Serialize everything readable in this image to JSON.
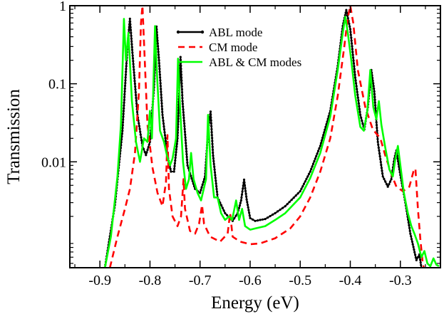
{
  "chart_data": {
    "type": "line",
    "title": "",
    "xlabel": "Energy (eV)",
    "ylabel": "Transmission",
    "xlim": [
      -0.96,
      -0.22
    ],
    "ylim": [
      0.00044,
      1.0
    ],
    "yscale": "log",
    "grid": false,
    "legend_position": "top-center",
    "x_ticks": [
      -0.9,
      -0.8,
      -0.7,
      -0.6,
      -0.5,
      -0.4,
      -0.3
    ],
    "x_tick_labels": [
      "-0.9",
      "-0.8",
      "-0.7",
      "-0.6",
      "-0.5",
      "-0.4",
      "-0.3"
    ],
    "y_ticks": [
      0.01,
      0.1,
      1
    ],
    "y_tick_labels": [
      "0.01",
      "0.1",
      "1"
    ],
    "series": [
      {
        "name": "ABL mode",
        "color": "#000000",
        "style": "solid-with-dots",
        "points": [
          [
            -0.89,
            0.00044
          ],
          [
            -0.87,
            0.0028
          ],
          [
            -0.855,
            0.025
          ],
          [
            -0.845,
            0.3
          ],
          [
            -0.84,
            0.68
          ],
          [
            -0.835,
            0.25
          ],
          [
            -0.825,
            0.04
          ],
          [
            -0.815,
            0.016
          ],
          [
            -0.808,
            0.0122
          ],
          [
            -0.8,
            0.018
          ],
          [
            -0.792,
            0.09
          ],
          [
            -0.787,
            0.54
          ],
          [
            -0.782,
            0.2
          ],
          [
            -0.775,
            0.04
          ],
          [
            -0.765,
            0.012
          ],
          [
            -0.758,
            0.0075
          ],
          [
            -0.752,
            0.0075
          ],
          [
            -0.745,
            0.02
          ],
          [
            -0.739,
            0.22
          ],
          [
            -0.735,
            0.06
          ],
          [
            -0.725,
            0.009
          ],
          [
            -0.71,
            0.0045
          ],
          [
            -0.7,
            0.004
          ],
          [
            -0.69,
            0.0065
          ],
          [
            -0.684,
            0.025
          ],
          [
            -0.679,
            0.044
          ],
          [
            -0.674,
            0.012
          ],
          [
            -0.665,
            0.0035
          ],
          [
            -0.65,
            0.0022
          ],
          [
            -0.635,
            0.00175
          ],
          [
            -0.625,
            0.0022
          ],
          [
            -0.618,
            0.0032
          ],
          [
            -0.612,
            0.0059
          ],
          [
            -0.607,
            0.0033
          ],
          [
            -0.6,
            0.0019
          ],
          [
            -0.59,
            0.00175
          ],
          [
            -0.57,
            0.00185
          ],
          [
            -0.55,
            0.0022
          ],
          [
            -0.53,
            0.0027
          ],
          [
            -0.5,
            0.0042
          ],
          [
            -0.48,
            0.0075
          ],
          [
            -0.46,
            0.016
          ],
          [
            -0.44,
            0.045
          ],
          [
            -0.425,
            0.17
          ],
          [
            -0.415,
            0.55
          ],
          [
            -0.408,
            0.88
          ],
          [
            -0.4,
            0.5
          ],
          [
            -0.39,
            0.12
          ],
          [
            -0.38,
            0.04
          ],
          [
            -0.372,
            0.026
          ],
          [
            -0.365,
            0.05
          ],
          [
            -0.358,
            0.15
          ],
          [
            -0.352,
            0.08
          ],
          [
            -0.345,
            0.018
          ],
          [
            -0.335,
            0.0065
          ],
          [
            -0.325,
            0.0048
          ],
          [
            -0.318,
            0.006
          ],
          [
            -0.312,
            0.011
          ],
          [
            -0.308,
            0.014
          ],
          [
            -0.302,
            0.008
          ],
          [
            -0.29,
            0.003
          ],
          [
            -0.28,
            0.0012
          ],
          [
            -0.268,
            0.00055
          ],
          [
            -0.262,
            0.00065
          ],
          [
            -0.258,
            0.00044
          ]
        ]
      },
      {
        "name": "CM mode",
        "color": "#ff0000",
        "style": "dashed",
        "points": [
          [
            -0.88,
            0.00044
          ],
          [
            -0.865,
            0.0011
          ],
          [
            -0.85,
            0.0025
          ],
          [
            -0.84,
            0.0045
          ],
          [
            -0.83,
            0.013
          ],
          [
            -0.822,
            0.08
          ],
          [
            -0.818,
            0.6
          ],
          [
            -0.815,
            1.0
          ],
          [
            -0.812,
            0.35
          ],
          [
            -0.805,
            0.03
          ],
          [
            -0.795,
            0.0085
          ],
          [
            -0.785,
            0.004
          ],
          [
            -0.775,
            0.0027
          ],
          [
            -0.768,
            0.0055
          ],
          [
            -0.765,
            0.022
          ],
          [
            -0.762,
            0.0045
          ],
          [
            -0.755,
            0.002
          ],
          [
            -0.745,
            0.0015
          ],
          [
            -0.738,
            0.002
          ],
          [
            -0.733,
            0.006
          ],
          [
            -0.73,
            0.0025
          ],
          [
            -0.72,
            0.0013
          ],
          [
            -0.71,
            0.0012
          ],
          [
            -0.702,
            0.0016
          ],
          [
            -0.696,
            0.0028
          ],
          [
            -0.692,
            0.0016
          ],
          [
            -0.68,
            0.0011
          ],
          [
            -0.66,
            0.00095
          ],
          [
            -0.645,
            0.0012
          ],
          [
            -0.64,
            0.0022
          ],
          [
            -0.635,
            0.0011
          ],
          [
            -0.62,
            0.00095
          ],
          [
            -0.6,
            0.00088
          ],
          [
            -0.58,
            0.0009
          ],
          [
            -0.55,
            0.00105
          ],
          [
            -0.52,
            0.0014
          ],
          [
            -0.5,
            0.002
          ],
          [
            -0.48,
            0.0035
          ],
          [
            -0.46,
            0.0075
          ],
          [
            -0.44,
            0.02
          ],
          [
            -0.425,
            0.07
          ],
          [
            -0.412,
            0.3
          ],
          [
            -0.405,
            0.7
          ],
          [
            -0.4,
            1.0
          ],
          [
            -0.394,
            0.6
          ],
          [
            -0.385,
            0.15
          ],
          [
            -0.37,
            0.05
          ],
          [
            -0.355,
            0.026
          ],
          [
            -0.34,
            0.02
          ],
          [
            -0.33,
            0.012
          ],
          [
            -0.318,
            0.007
          ],
          [
            -0.308,
            0.0048
          ],
          [
            -0.295,
            0.0042
          ],
          [
            -0.282,
            0.0048
          ],
          [
            -0.274,
            0.0075
          ],
          [
            -0.27,
            0.0082
          ],
          [
            -0.265,
            0.0025
          ],
          [
            -0.26,
            0.001
          ],
          [
            -0.255,
            0.00048
          ],
          [
            -0.253,
            0.00044
          ]
        ]
      },
      {
        "name": "ABL & CM modes",
        "color": "#00ff00",
        "style": "solid",
        "points": [
          [
            -0.89,
            0.00044
          ],
          [
            -0.878,
            0.0011
          ],
          [
            -0.865,
            0.0065
          ],
          [
            -0.858,
            0.03
          ],
          [
            -0.852,
            0.68
          ],
          [
            -0.848,
            0.2
          ],
          [
            -0.843,
            0.45
          ],
          [
            -0.836,
            0.06
          ],
          [
            -0.828,
            0.018
          ],
          [
            -0.82,
            0.01
          ],
          [
            -0.812,
            0.02
          ],
          [
            -0.805,
            0.018
          ],
          [
            -0.8,
            0.045
          ],
          [
            -0.796,
            0.02
          ],
          [
            -0.79,
            0.55
          ],
          [
            -0.786,
            0.13
          ],
          [
            -0.78,
            0.025
          ],
          [
            -0.772,
            0.018
          ],
          [
            -0.766,
            0.012
          ],
          [
            -0.76,
            0.009
          ],
          [
            -0.755,
            0.011
          ],
          [
            -0.748,
            0.02
          ],
          [
            -0.744,
            0.21
          ],
          [
            -0.74,
            0.05
          ],
          [
            -0.734,
            0.01
          ],
          [
            -0.728,
            0.0045
          ],
          [
            -0.722,
            0.006
          ],
          [
            -0.718,
            0.013
          ],
          [
            -0.713,
            0.006
          ],
          [
            -0.705,
            0.004
          ],
          [
            -0.698,
            0.0032
          ],
          [
            -0.688,
            0.006
          ],
          [
            -0.684,
            0.04
          ],
          [
            -0.679,
            0.009
          ],
          [
            -0.672,
            0.0035
          ],
          [
            -0.665,
            0.0035
          ],
          [
            -0.658,
            0.0022
          ],
          [
            -0.65,
            0.0018
          ],
          [
            -0.642,
            0.002
          ],
          [
            -0.636,
            0.0018
          ],
          [
            -0.628,
            0.0032
          ],
          [
            -0.622,
            0.0018
          ],
          [
            -0.616,
            0.0025
          ],
          [
            -0.61,
            0.0015
          ],
          [
            -0.6,
            0.00135
          ],
          [
            -0.59,
            0.0014
          ],
          [
            -0.57,
            0.0015
          ],
          [
            -0.55,
            0.0018
          ],
          [
            -0.53,
            0.0022
          ],
          [
            -0.5,
            0.0035
          ],
          [
            -0.48,
            0.0062
          ],
          [
            -0.46,
            0.013
          ],
          [
            -0.44,
            0.038
          ],
          [
            -0.425,
            0.15
          ],
          [
            -0.415,
            0.45
          ],
          [
            -0.41,
            0.72
          ],
          [
            -0.405,
            0.45
          ],
          [
            -0.398,
            0.2
          ],
          [
            -0.39,
            0.07
          ],
          [
            -0.38,
            0.028
          ],
          [
            -0.373,
            0.025
          ],
          [
            -0.366,
            0.045
          ],
          [
            -0.36,
            0.15
          ],
          [
            -0.354,
            0.05
          ],
          [
            -0.348,
            0.035
          ],
          [
            -0.343,
            0.06
          ],
          [
            -0.338,
            0.03
          ],
          [
            -0.33,
            0.015
          ],
          [
            -0.322,
            0.008
          ],
          [
            -0.315,
            0.0065
          ],
          [
            -0.31,
            0.011
          ],
          [
            -0.305,
            0.016
          ],
          [
            -0.3,
            0.009
          ],
          [
            -0.293,
            0.004
          ],
          [
            -0.285,
            0.0022
          ],
          [
            -0.278,
            0.0015
          ],
          [
            -0.272,
            0.0012
          ],
          [
            -0.265,
            0.0009
          ],
          [
            -0.258,
            0.0006
          ],
          [
            -0.252,
            0.00072
          ],
          [
            -0.246,
            0.0005
          ],
          [
            -0.24,
            0.00046
          ],
          [
            -0.234,
            0.00058
          ],
          [
            -0.228,
            0.00048
          ],
          [
            -0.223,
            0.00046
          ]
        ]
      }
    ]
  }
}
